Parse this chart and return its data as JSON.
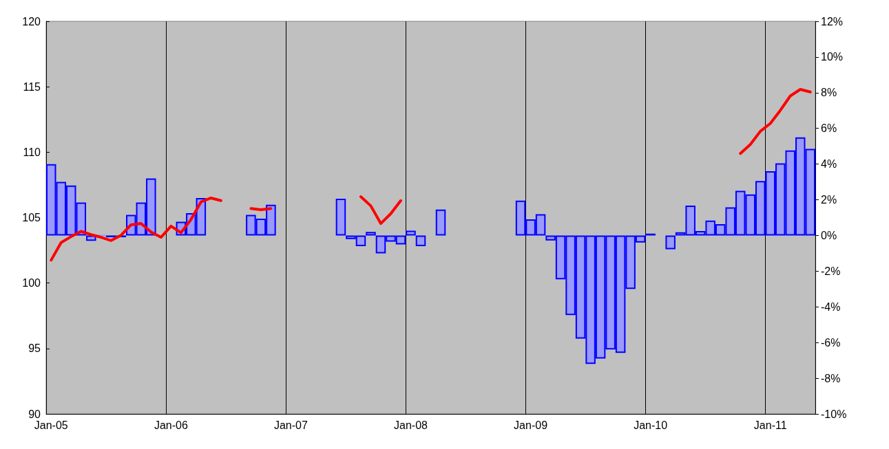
{
  "chart_data": {
    "type": "bar",
    "categories": [
      "Jan-05",
      null,
      null,
      null,
      null,
      null,
      null,
      null,
      null,
      null,
      null,
      null,
      "Jan-06",
      null,
      null,
      null,
      null,
      null,
      null,
      null,
      null,
      null,
      null,
      null,
      "Jan-07",
      null,
      null,
      null,
      null,
      null,
      null,
      null,
      null,
      null,
      null,
      null,
      "Jan-08",
      null,
      null,
      null,
      null,
      null,
      null,
      null,
      null,
      null,
      null,
      null,
      "Jan-09",
      null,
      null,
      null,
      null,
      null,
      null,
      null,
      null,
      null,
      null,
      null,
      "Jan-10",
      null,
      null,
      null,
      null,
      null,
      null,
      null,
      null,
      null,
      null,
      null,
      "Jan-11",
      null,
      null,
      null,
      null
    ],
    "series": [
      {
        "axis": "y2",
        "color": "#9999ff",
        "values": [
          4.0,
          3.0,
          2.8,
          1.85,
          -0.3,
          0,
          -0.1,
          -0.1,
          1.15,
          1.85,
          3.2,
          null,
          null,
          0.77,
          1.25,
          2.1,
          null,
          null,
          null,
          null,
          1.15,
          0.94,
          1.72,
          null,
          null,
          null,
          null,
          null,
          null,
          2.06,
          -0.2,
          -0.6,
          0.2,
          -1.0,
          -0.35,
          -0.5,
          0.27,
          -0.6,
          null,
          1.45,
          null,
          null,
          null,
          null,
          null,
          null,
          null,
          1.95,
          0.9,
          1.19,
          -0.28,
          -2.46,
          -4.46,
          -5.78,
          -7.2,
          -6.9,
          -6.39,
          -6.58,
          -3.0,
          -0.4,
          0.1,
          null,
          -0.77,
          0.18,
          1.67,
          0.25,
          0.84,
          0.63,
          1.58,
          2.5,
          2.3,
          3.05,
          3.6,
          4.04,
          4.77,
          5.5,
          4.85
        ]
      },
      {
        "type": "line",
        "axis": "y",
        "color": "#ff0000",
        "values": [
          101.75,
          103.1,
          103.55,
          103.95,
          103.7,
          103.5,
          103.25,
          103.65,
          104.45,
          104.55,
          103.9,
          103.5,
          104.35,
          103.85,
          104.85,
          106.2,
          106.5,
          106.3,
          null,
          null,
          105.7,
          105.6,
          105.7,
          null,
          null,
          null,
          null,
          null,
          null,
          null,
          null,
          106.6,
          105.9,
          104.55,
          105.3,
          106.3,
          null,
          null,
          null,
          null,
          null,
          null,
          null,
          null,
          null,
          null,
          null,
          null,
          null,
          null,
          null,
          null,
          null,
          null,
          null,
          null,
          null,
          null,
          null,
          null,
          null,
          null,
          null,
          null,
          null,
          null,
          null,
          null,
          null,
          109.9,
          110.6,
          111.6,
          112.2,
          113.2,
          114.3,
          114.8,
          114.6
        ]
      }
    ],
    "ylim": [
      90,
      120
    ],
    "yticks": [
      90,
      95,
      100,
      105,
      110,
      115,
      120
    ],
    "y2lim": [
      -10,
      12
    ],
    "y2ticks": [
      {
        "value": -10,
        "label": "-10%"
      },
      {
        "value": -8,
        "label": "-8%"
      },
      {
        "value": -6,
        "label": "-6%"
      },
      {
        "value": -4,
        "label": "-4%"
      },
      {
        "value": -2,
        "label": "-2%"
      },
      {
        "value": 0,
        "label": "0%"
      },
      {
        "value": 2,
        "label": "2%"
      },
      {
        "value": 4,
        "label": "4%"
      },
      {
        "value": 6,
        "label": "6%"
      },
      {
        "value": 8,
        "label": "8%"
      },
      {
        "value": 10,
        "label": "10%"
      },
      {
        "value": 12,
        "label": "12%"
      }
    ],
    "grid": "x",
    "marker": "none"
  }
}
